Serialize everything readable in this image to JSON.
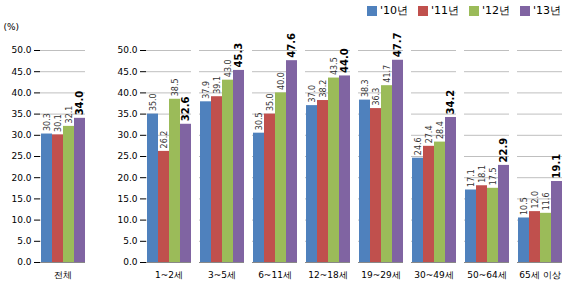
{
  "chart_data": {
    "type": "bar",
    "categories": [
      "전체",
      null,
      "1~2세",
      "3~5세",
      "6~11세",
      "12~18세",
      "19~29세",
      "30~49세",
      "50~64세",
      "65세 이상"
    ],
    "series": [
      {
        "name": "'10년",
        "color": "#4f81bd",
        "values": [
          30.3,
          null,
          35.0,
          37.9,
          30.5,
          37.0,
          38.3,
          24.6,
          17.1,
          10.5
        ],
        "value_labels": [
          "30.3",
          null,
          "35.0",
          "37.9",
          "30.5",
          "37.0",
          "38.3",
          "24.6",
          "17.1",
          "10.5"
        ]
      },
      {
        "name": "'11년",
        "color": "#c0504d",
        "values": [
          30.1,
          null,
          26.2,
          39.1,
          35.0,
          38.2,
          36.3,
          27.4,
          18.1,
          12.0
        ],
        "value_labels": [
          "30.1",
          null,
          "26.2",
          "39.1",
          "35.0",
          "38.2",
          "36.3",
          "27.4",
          "18.1",
          "12.0"
        ]
      },
      {
        "name": "'12년",
        "color": "#9bbb59",
        "values": [
          32.1,
          null,
          38.5,
          43.0,
          40.0,
          43.5,
          41.7,
          28.4,
          17.5,
          11.6
        ],
        "value_labels": [
          "32.1",
          null,
          "38.5",
          "43.0",
          "40.0",
          "43.5",
          "41.7",
          "28.4",
          "17.5",
          "11.6"
        ]
      },
      {
        "name": "'13년",
        "color": "#8064a2",
        "values": [
          34.0,
          null,
          32.6,
          45.3,
          47.6,
          44.0,
          47.7,
          34.2,
          22.9,
          19.1
        ],
        "value_labels": [
          "34.0",
          null,
          "32.6",
          "45.3",
          "47.6",
          "44.0",
          "47.7",
          "34.2",
          "22.9",
          "19.1"
        ]
      }
    ],
    "y_label": "(%)",
    "ylim": [
      0,
      50
    ],
    "yticks": [
      {
        "value": 0,
        "label": "0.0"
      },
      {
        "value": 5,
        "label": "5.0"
      },
      {
        "value": 10,
        "label": "10.0"
      },
      {
        "value": 15,
        "label": "15.0"
      },
      {
        "value": 20,
        "label": "20.0"
      },
      {
        "value": 25,
        "label": "25.0"
      },
      {
        "value": 30,
        "label": "30.0"
      },
      {
        "value": 35,
        "label": "35.0"
      },
      {
        "value": 40,
        "label": "40.0"
      },
      {
        "value": 45,
        "label": "45.0"
      },
      {
        "value": 50,
        "label": "50.0"
      }
    ],
    "grid": true,
    "legend": "top-right",
    "data_labels": true
  }
}
